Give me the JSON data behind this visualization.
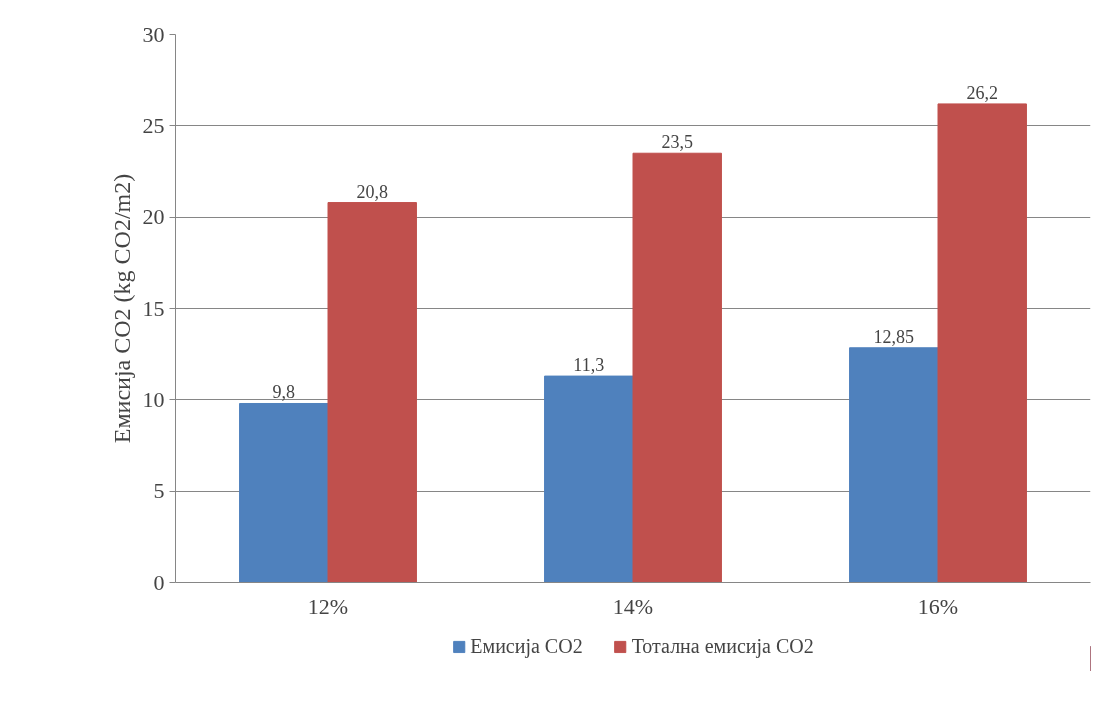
{
  "chart_data": {
    "type": "bar",
    "ylabel": "Емисија CO2 (kg CO2/m2)",
    "categories": [
      "12%",
      "14%",
      "16%"
    ],
    "series": [
      {
        "name": "Емисија CO2",
        "color": "#4f81bd",
        "values": [
          9.8,
          11.3,
          12.85
        ],
        "value_labels": [
          "9,8",
          "11,3",
          "12,85"
        ]
      },
      {
        "name": "Тотална емисија CO2",
        "color": "#c0504d",
        "values": [
          20.8,
          23.5,
          26.2
        ],
        "value_labels": [
          "20,8",
          "23,5",
          "26,2"
        ]
      }
    ],
    "ylim": [
      0,
      30
    ],
    "yticks": [
      0,
      5,
      10,
      15,
      20,
      25,
      30
    ],
    "grid": "y",
    "legend": "bottom"
  }
}
